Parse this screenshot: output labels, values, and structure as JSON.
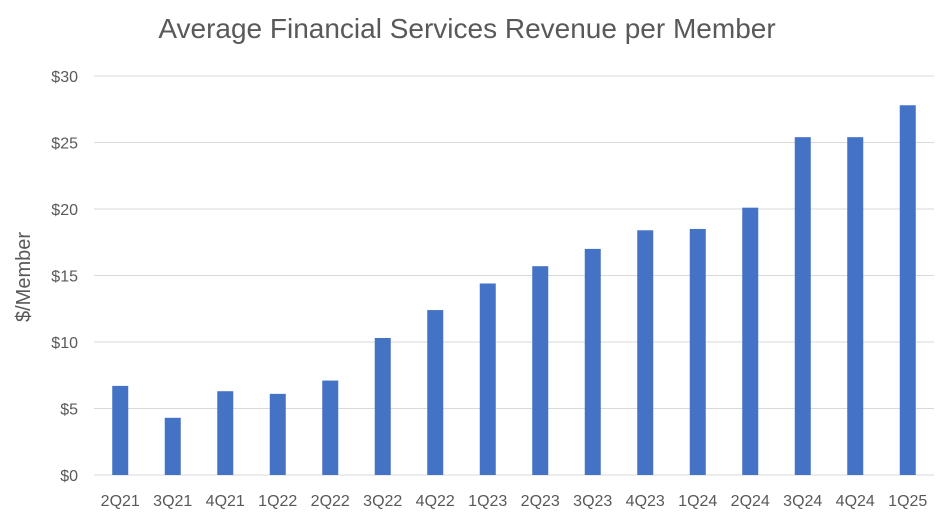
{
  "chart_data": {
    "type": "bar",
    "title": "Average Financial Services Revenue per Member",
    "xlabel": "",
    "ylabel": "$/Member",
    "ylim": [
      0,
      30
    ],
    "yticks": [
      0,
      5,
      10,
      15,
      20,
      25,
      30
    ],
    "ytick_labels": [
      "$0",
      "$5",
      "$10",
      "$15",
      "$20",
      "$25",
      "$30"
    ],
    "grid": true,
    "legend": "none",
    "bar_color": "#4472c4",
    "categories": [
      "2Q21",
      "3Q21",
      "4Q21",
      "1Q22",
      "2Q22",
      "3Q22",
      "4Q22",
      "1Q23",
      "2Q23",
      "3Q23",
      "4Q23",
      "1Q24",
      "2Q24",
      "3Q24",
      "4Q24",
      "1Q25"
    ],
    "values": [
      6.7,
      4.3,
      6.3,
      6.1,
      7.1,
      10.3,
      12.4,
      14.4,
      15.7,
      17.0,
      18.4,
      18.5,
      20.1,
      25.4,
      25.4,
      27.8
    ]
  }
}
